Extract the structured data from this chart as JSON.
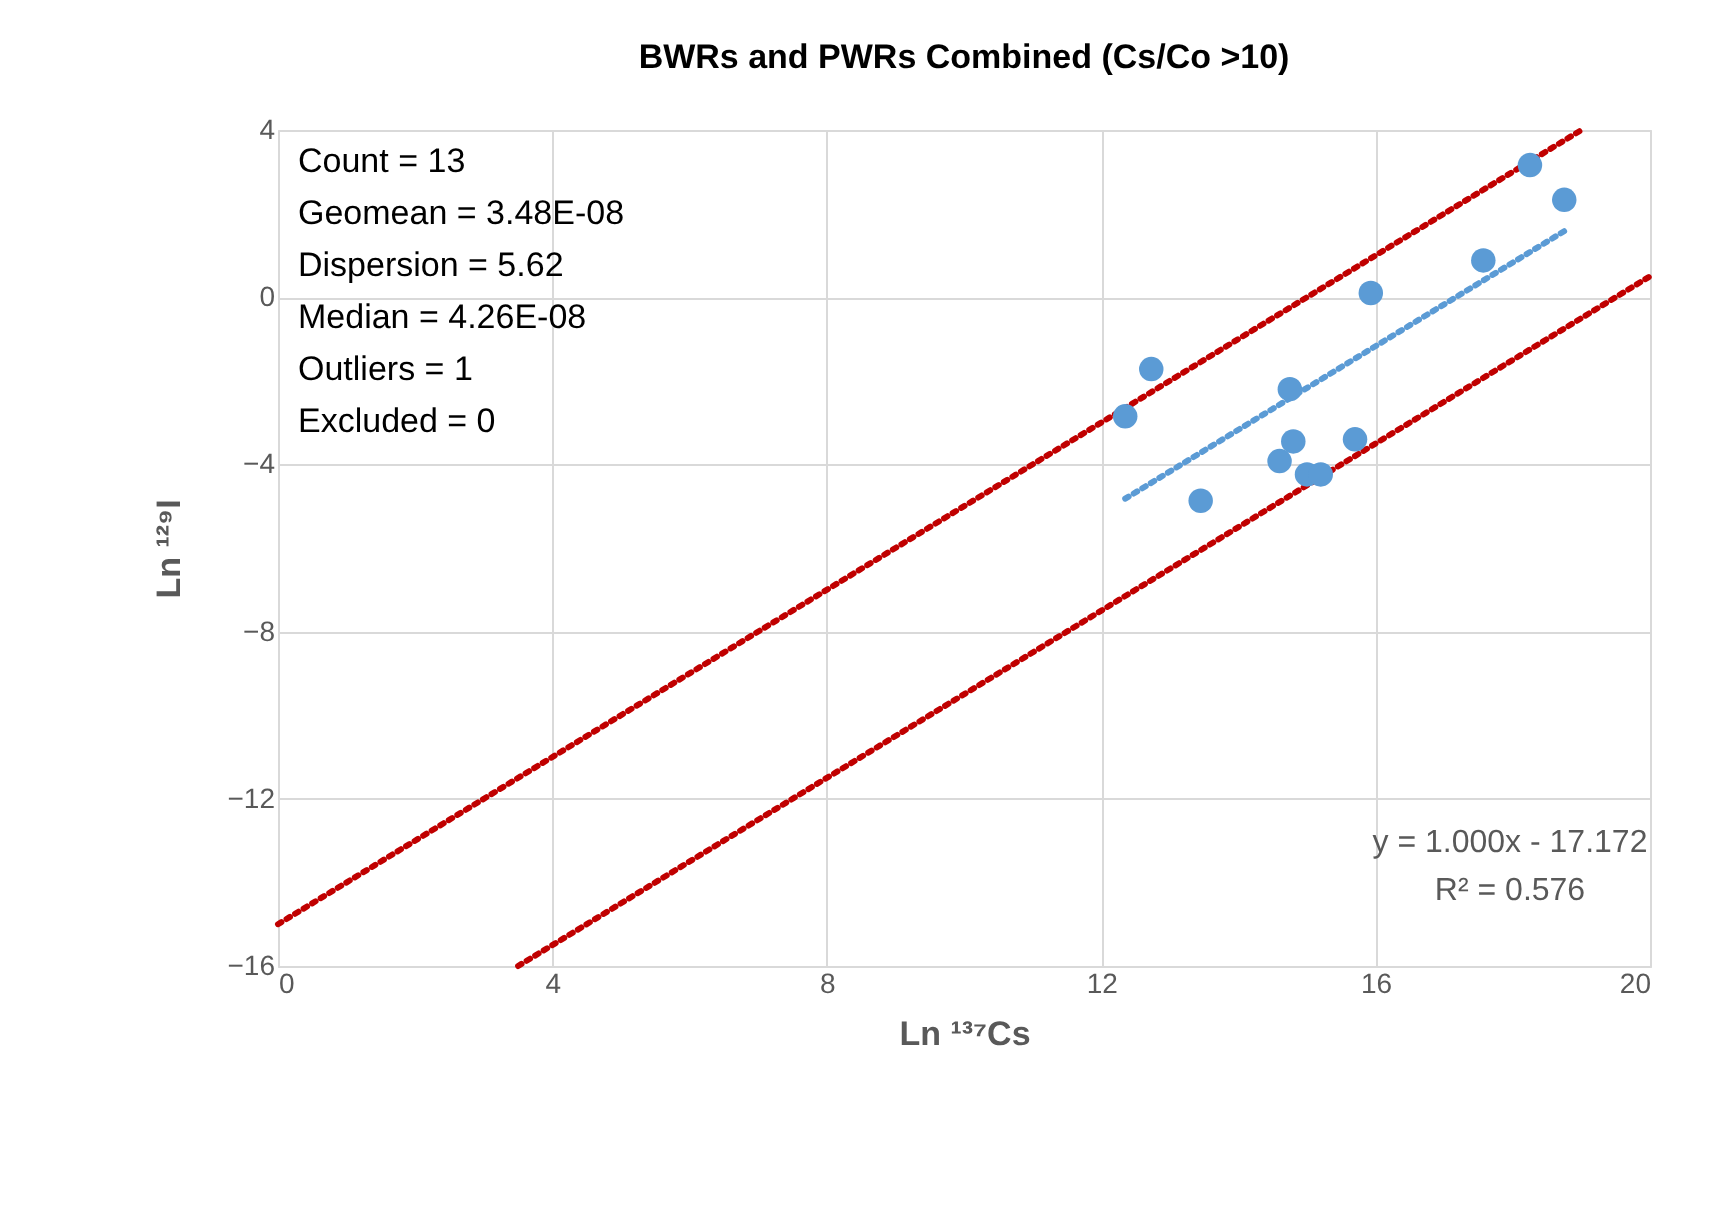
{
  "chart_data": {
    "type": "scatter",
    "title": "BWRs and PWRs Combined (Cs/Co >10)",
    "xlabel": "Ln ¹³⁷Cs",
    "ylabel": "Ln ¹²⁹I",
    "xlim": [
      0,
      20
    ],
    "xticks": [
      0,
      4,
      8,
      12,
      16,
      20
    ],
    "ylim": [
      -16,
      4
    ],
    "yticks": [
      -16,
      -12,
      -8,
      -4,
      0,
      4
    ],
    "grid": true,
    "series": [
      {
        "color": "#5b9bd5",
        "marker": "circle",
        "x": [
          12.35,
          12.73,
          13.45,
          14.6,
          14.75,
          14.8,
          15.0,
          15.2,
          15.7,
          15.93,
          17.57,
          18.25,
          18.75
        ],
        "values": [
          -2.85,
          -1.72,
          -4.87,
          -3.92,
          -2.2,
          -3.45,
          -4.24,
          -4.24,
          -3.4,
          0.1,
          0.88,
          3.16,
          2.33
        ]
      },
      {
        "type": "line",
        "color": "#5b9bd5",
        "line_style": "dotted",
        "marker": "none",
        "x": [
          12.35,
          18.75
        ],
        "values": [
          -4.82,
          1.58
        ]
      },
      {
        "type": "line",
        "color": "#c00000",
        "line_style": "dotted",
        "marker": "none",
        "x": [
          0,
          19
        ],
        "values": [
          -15,
          4
        ]
      },
      {
        "type": "line",
        "color": "#c00000",
        "line_style": "dotted",
        "marker": "none",
        "x": [
          3.5,
          20
        ],
        "values": [
          -16,
          0.5
        ]
      }
    ],
    "annotations": [
      "Count = 13\nGeomean = 3.48E-08\nDispersion = 5.62\nMedian = 4.26E-08\nOutliers = 1\nExcluded = 0",
      "y = 1.000x - 17.172\nR² = 0.576"
    ]
  }
}
